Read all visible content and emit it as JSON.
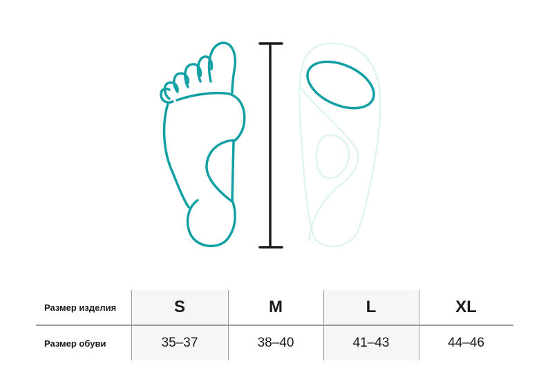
{
  "colors": {
    "accent": "#12a0a5",
    "insole": "#dff3f3",
    "ruler": "#1a1a1a",
    "column_shade": "#f6f6f6"
  },
  "illustration": {
    "foot_icon": "foot-sole-outline",
    "ruler_icon": "height-ruler",
    "insole_icon": "insole-outline"
  },
  "table": {
    "row_labels": [
      "Размер изделия",
      "Размер обуви"
    ],
    "sizes": [
      "S",
      "M",
      "L",
      "XL"
    ],
    "shoe_sizes": [
      "35–37",
      "38–40",
      "41–43",
      "44–46"
    ]
  }
}
